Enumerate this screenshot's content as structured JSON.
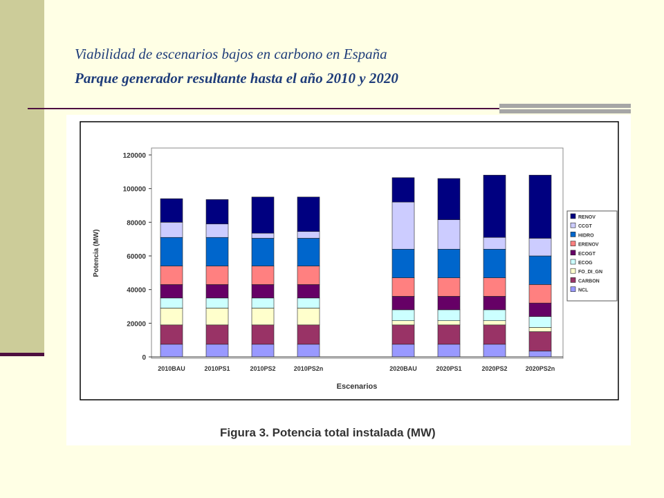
{
  "slide": {
    "title_line1": "Viabilidad de escenarios bajos en carbono en España",
    "title_line2": "Parque generador resultante hasta el año 2010 y 2020"
  },
  "figure": {
    "caption": "Figura 3. Potencia total instalada (MW)"
  },
  "colors": {
    "accent_band": "#CCCC99",
    "title_text": "#1F3D7A",
    "rule": "#4D0E3F",
    "background": "#FFFFE5"
  },
  "chart_data": {
    "type": "bar",
    "stacked": true,
    "title": "",
    "xlabel": "Escenarios",
    "ylabel": "Potencia (MW)",
    "ylim": [
      0,
      120000
    ],
    "yticks": [
      0,
      20000,
      40000,
      60000,
      80000,
      100000,
      120000
    ],
    "grid": false,
    "legend_position": "right",
    "categories": [
      "2010BAU",
      "2010PS1",
      "2010PS2",
      "2010PS2n",
      "2020BAU",
      "2020PS1",
      "2020PS2",
      "2020PS2n"
    ],
    "series": [
      {
        "name": "NCL",
        "color": "#9999FF",
        "values": [
          7500,
          7500,
          7500,
          7500,
          7500,
          7500,
          7500,
          3500
        ]
      },
      {
        "name": "CARBON",
        "color": "#993366",
        "values": [
          11500,
          11500,
          11500,
          11500,
          11500,
          11500,
          11500,
          11500
        ]
      },
      {
        "name": "FO_DI_GN",
        "color": "#FFFFCC",
        "values": [
          10000,
          10000,
          10000,
          10000,
          2500,
          2500,
          2500,
          2500
        ]
      },
      {
        "name": "ECOG",
        "color": "#CCFFFF",
        "values": [
          6000,
          6000,
          6000,
          6000,
          6500,
          6500,
          6500,
          6500
        ]
      },
      {
        "name": "ECOGT",
        "color": "#660066",
        "values": [
          8000,
          8000,
          8000,
          8000,
          8000,
          8000,
          8000,
          8000
        ]
      },
      {
        "name": "ERENOV",
        "color": "#FF8080",
        "values": [
          11000,
          11000,
          11000,
          11000,
          11000,
          11000,
          11000,
          11000
        ]
      },
      {
        "name": "HIDRO",
        "color": "#0066CC",
        "values": [
          17000,
          17000,
          16500,
          16500,
          17000,
          17000,
          17000,
          17000
        ]
      },
      {
        "name": "CCGT",
        "color": "#CCCCFF",
        "values": [
          9000,
          8000,
          3000,
          4000,
          28000,
          17500,
          7000,
          10500
        ]
      },
      {
        "name": "RENOV",
        "color": "#000080",
        "values": [
          14000,
          14500,
          21500,
          20500,
          14500,
          24500,
          37000,
          37500
        ]
      }
    ]
  }
}
